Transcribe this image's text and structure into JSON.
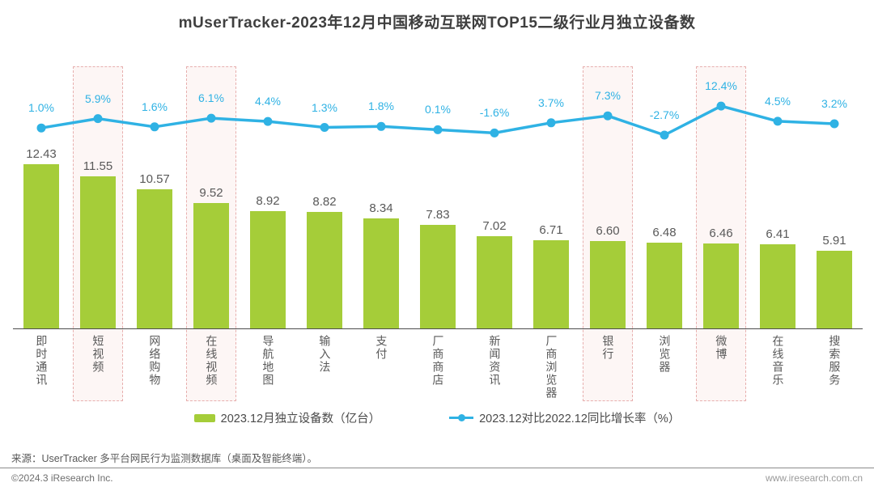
{
  "title": "mUserTracker-2023年12月中国移动互联网TOP15二级行业月独立设备数",
  "chart_data": {
    "type": "bar",
    "title": "mUserTracker-2023年12月中国移动互联网TOP15二级行业月独立设备数",
    "categories": [
      "即时通讯",
      "短视频",
      "网络购物",
      "在线视频",
      "导航地图",
      "输入法",
      "支付",
      "厂商商店",
      "新闻资讯",
      "厂商浏览器",
      "银行",
      "浏览器",
      "微博",
      "在线音乐",
      "搜索服务"
    ],
    "series": [
      {
        "name": "2023.12月独立设备数（亿台）",
        "type": "bar",
        "values": [
          12.43,
          11.55,
          10.57,
          9.52,
          8.92,
          8.82,
          8.34,
          7.83,
          7.02,
          6.71,
          6.6,
          6.48,
          6.46,
          6.41,
          5.91
        ],
        "color": "#a5cd39"
      },
      {
        "name": "2023.12对比2022.12同比增长率（%）",
        "type": "line",
        "values": [
          1.0,
          5.9,
          1.6,
          6.1,
          4.4,
          1.3,
          1.8,
          0.1,
          -1.6,
          3.7,
          7.3,
          -2.7,
          12.4,
          4.5,
          3.2
        ],
        "color": "#2fb2e4"
      }
    ],
    "highlight_indexes": [
      1,
      3,
      10,
      12
    ],
    "highlighted_categories": [
      "短视频",
      "在线视频",
      "银行",
      "微博"
    ],
    "highlight_style": {
      "fill": "#fdf6f5",
      "border": "#e7afae"
    },
    "legend_position": "bottom",
    "grid": false,
    "value_labels_shown": true
  },
  "legend": {
    "bar_label": "2023.12月独立设备数（亿台）",
    "line_label": "2023.12对比2022.12同比增长率（%）"
  },
  "footer": {
    "source": "来源：UserTracker 多平台网民行为监测数据库（桌面及智能终端）。",
    "copyright": "©2024.3 iResearch Inc.",
    "website": "www.iresearch.com.cn"
  }
}
